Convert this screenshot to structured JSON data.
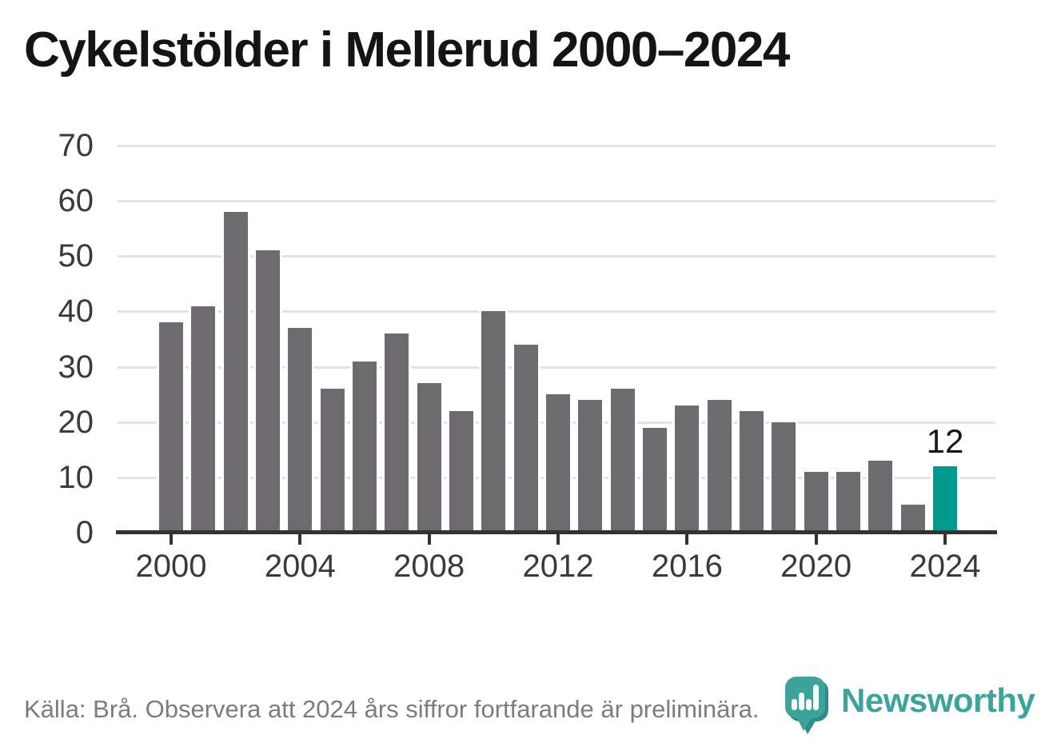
{
  "title": "Cykelstölder i Mellerud 2000–2024",
  "chart_data": {
    "type": "bar",
    "title": "Cykelstölder i Mellerud 2000–2024",
    "x": [
      2000,
      2001,
      2002,
      2003,
      2004,
      2005,
      2006,
      2007,
      2008,
      2009,
      2010,
      2011,
      2012,
      2013,
      2014,
      2015,
      2016,
      2017,
      2018,
      2019,
      2020,
      2021,
      2022,
      2023,
      2024
    ],
    "values": [
      38,
      41,
      58,
      51,
      37,
      26,
      31,
      36,
      27,
      22,
      40,
      34,
      25,
      24,
      26,
      19,
      23,
      24,
      22,
      20,
      11,
      11,
      13,
      5,
      12
    ],
    "xlabel": "",
    "ylabel": "",
    "ylim": [
      0,
      70
    ],
    "y_ticks": [
      0,
      10,
      20,
      30,
      40,
      50,
      60,
      70
    ],
    "x_tick_years": [
      2000,
      2004,
      2008,
      2012,
      2016,
      2020,
      2024
    ],
    "grid": "horizontal",
    "legend": "none",
    "bar_color": "#6d6b70",
    "highlight_year": 2024,
    "highlight_color": "#019a8e",
    "data_labels": [
      {
        "year": 2024,
        "text": "12"
      }
    ]
  },
  "footer": {
    "source_text": "Källa: Brå. Observera att 2024 års siffror fortfarande är preliminära."
  },
  "branding": {
    "name": "Newsworthy",
    "logo_icon": "newsworthy-pin-bar-chart-icon",
    "color": "#3ea39b"
  },
  "colors": {
    "title": "#141414",
    "axis_text": "#3a3a3a",
    "gridline": "#e3e3e3",
    "axis_line": "#333333",
    "footer_text": "#7c7c7c"
  }
}
